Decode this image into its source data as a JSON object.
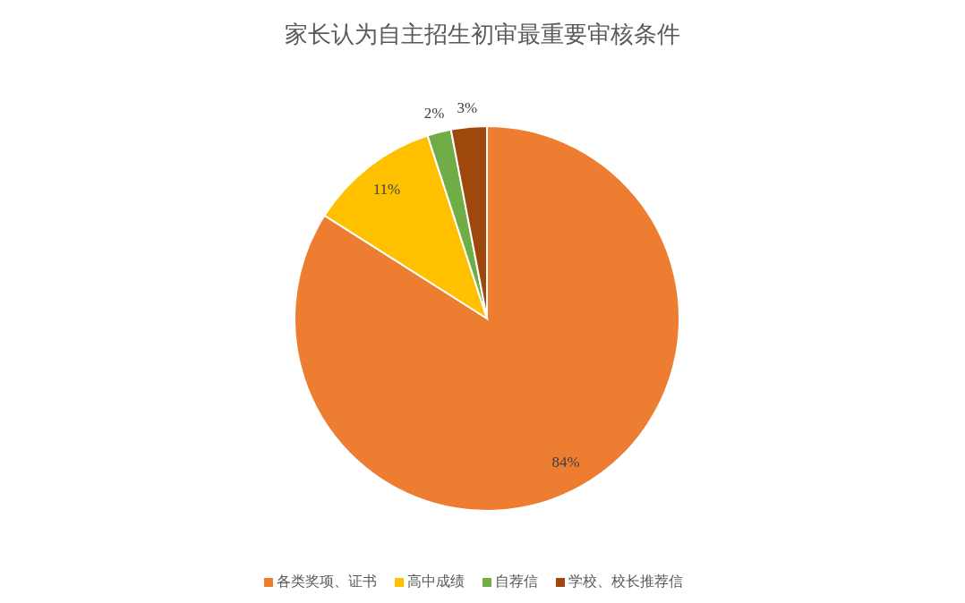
{
  "chart_data": {
    "type": "pie",
    "title": "家长认为自主招生初审最重要审核条件",
    "categories": [
      "各类奖项、证书",
      "高中成绩",
      "自荐信",
      "学校、校长推荐信"
    ],
    "values": [
      84,
      11,
      2,
      3
    ],
    "colors": [
      "#ed7d31",
      "#ffc000",
      "#70ad47",
      "#9e480e"
    ],
    "value_labels": [
      "84%",
      "11%",
      "2%",
      "3%"
    ],
    "legend": "bottom"
  }
}
